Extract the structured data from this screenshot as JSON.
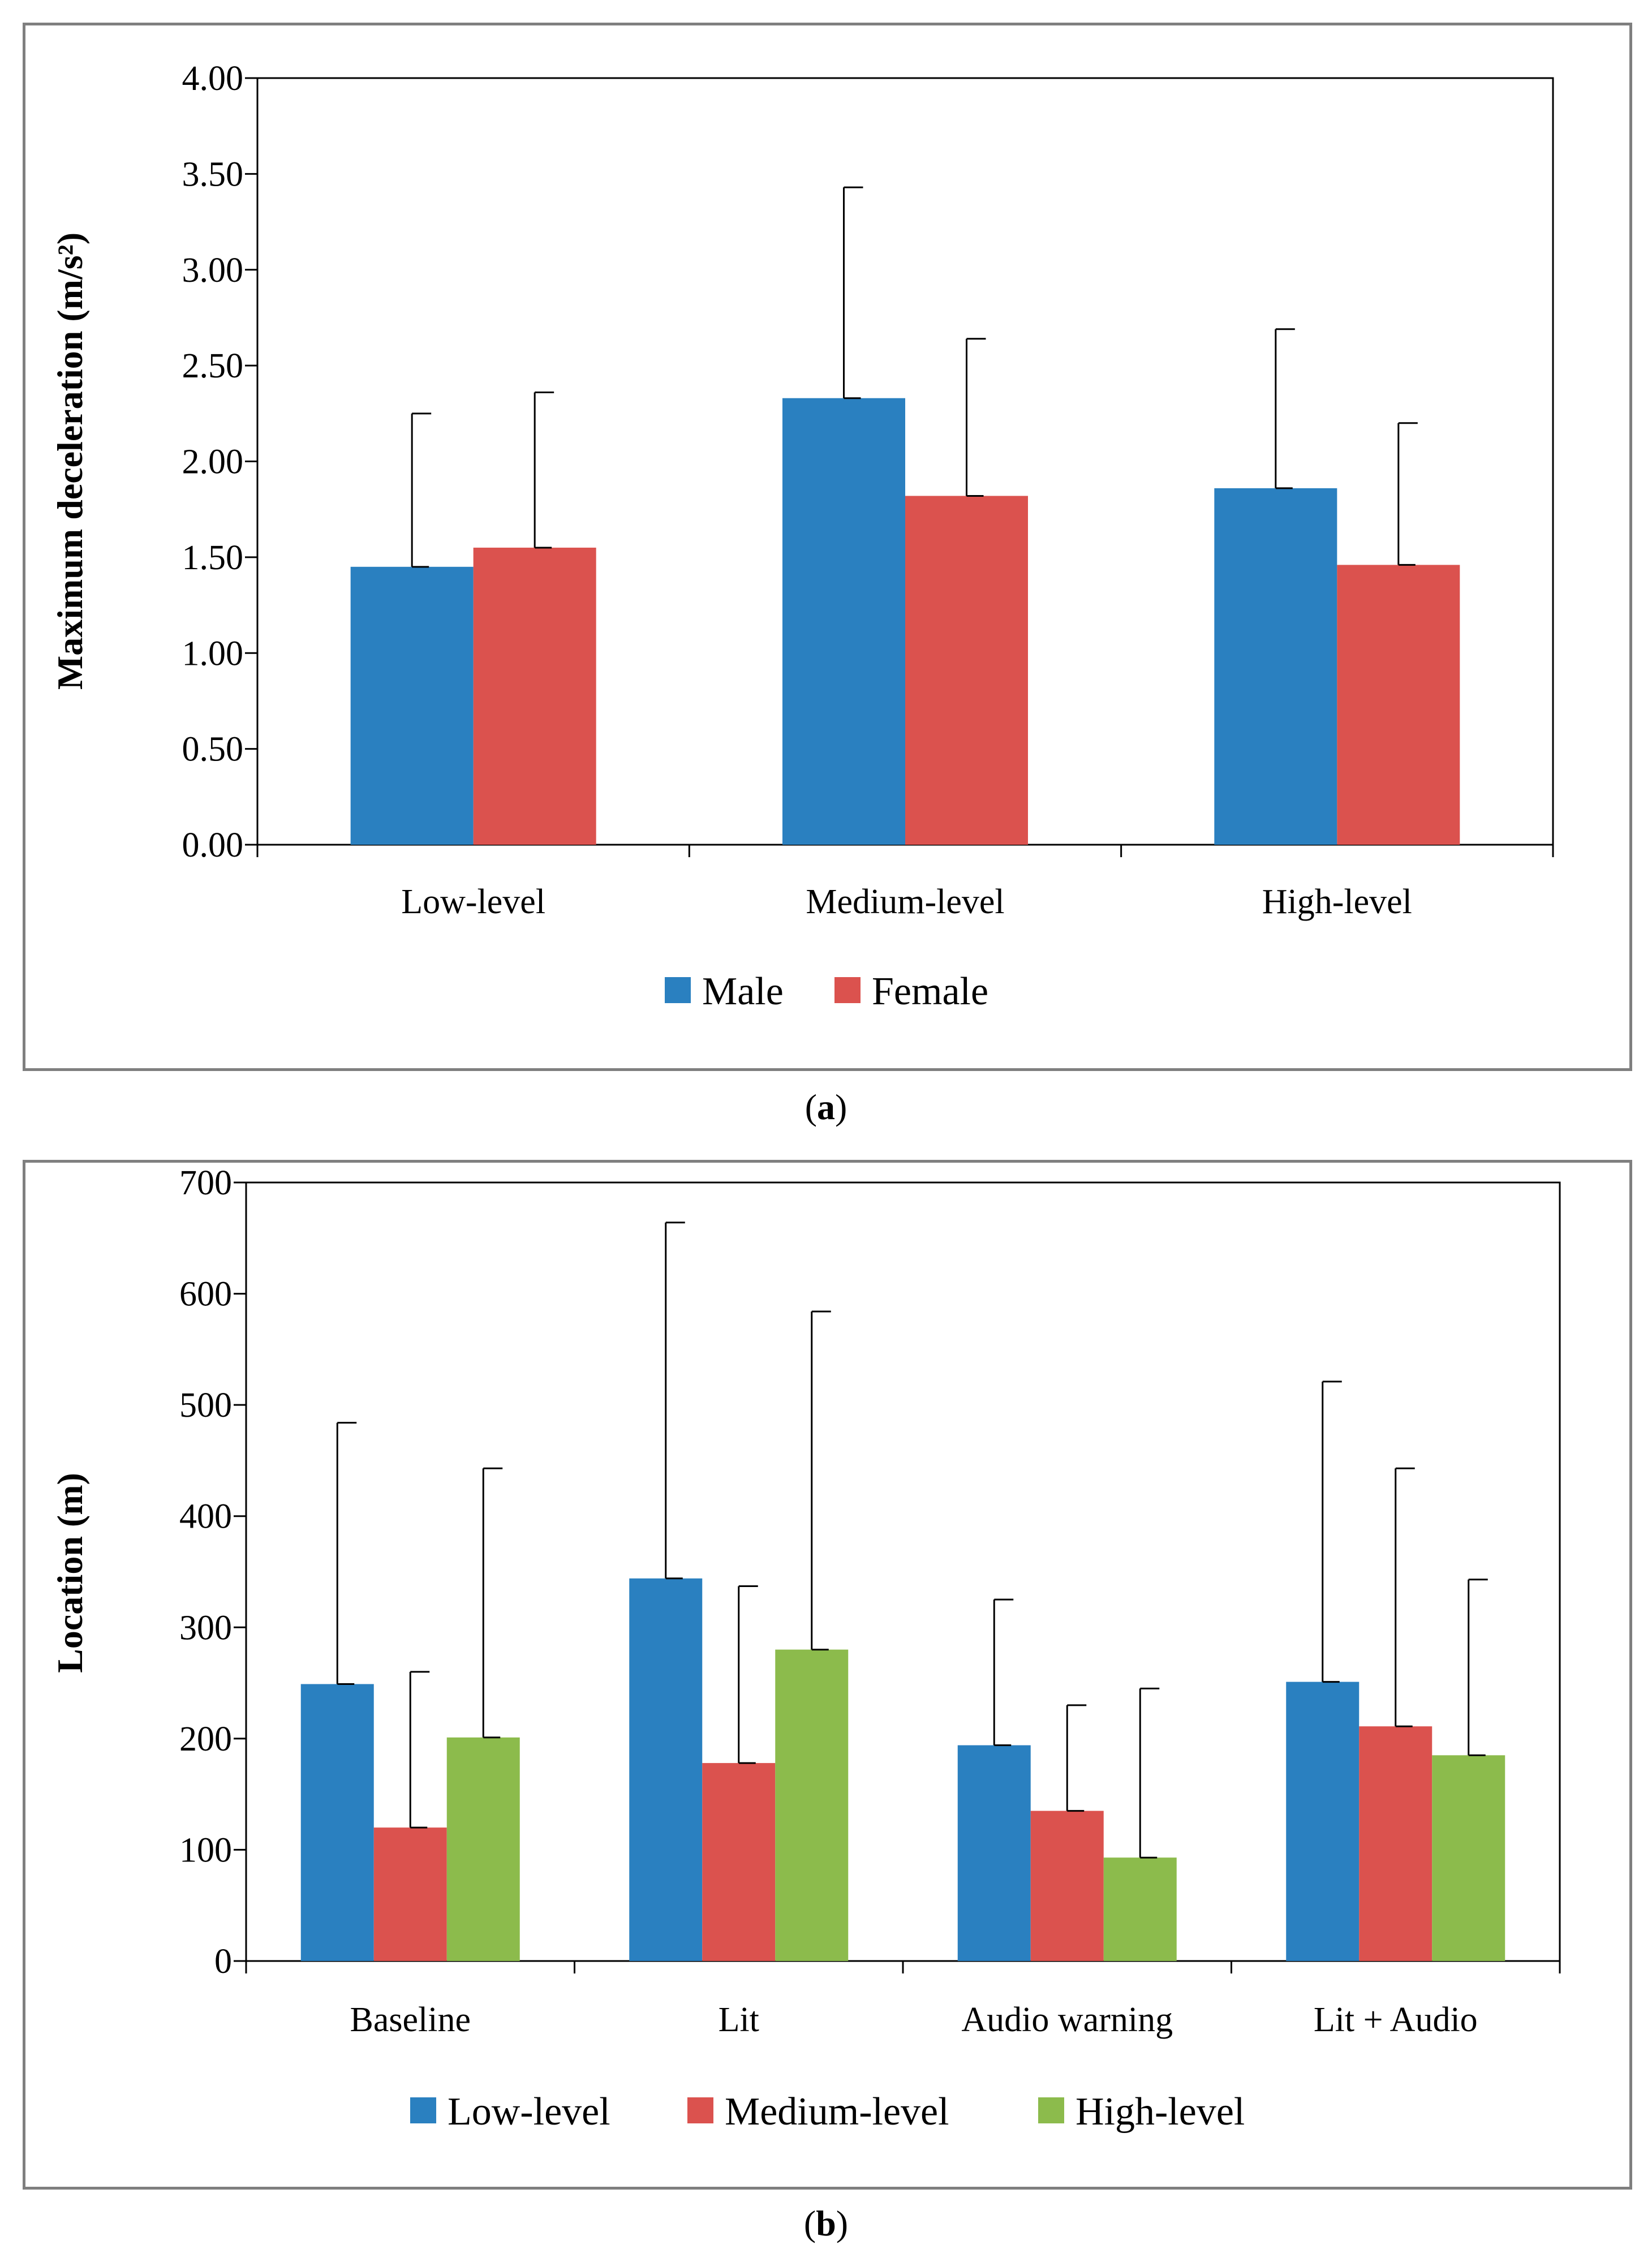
{
  "panels": {
    "a": {
      "caption_open": "(",
      "caption_letter": "a",
      "caption_close": ")"
    },
    "b": {
      "caption_open": "(",
      "caption_letter": "b",
      "caption_close": ")"
    }
  },
  "chart_data": [
    {
      "id": "a",
      "type": "bar",
      "title": "",
      "ylabel": "Maximum deceleration (m/s²)",
      "xlabel": "",
      "ylim": [
        0,
        4
      ],
      "yticks": [
        0,
        0.5,
        1,
        1.5,
        2,
        2.5,
        3,
        3.5,
        4
      ],
      "ytick_labels": [
        "0.00",
        "0.50",
        "1.00",
        "1.50",
        "2.00",
        "2.50",
        "3.00",
        "3.50",
        "4.00"
      ],
      "categories": [
        "Low-level",
        "Medium-level",
        "High-level"
      ],
      "series": [
        {
          "name": "Male",
          "color": "#2a80c0",
          "values": [
            1.45,
            2.33,
            1.86
          ],
          "error_upper": [
            2.25,
            3.43,
            2.69
          ]
        },
        {
          "name": "Female",
          "color": "#db524e",
          "values": [
            1.55,
            1.82,
            1.46
          ],
          "error_upper": [
            2.36,
            2.64,
            2.2
          ]
        }
      ],
      "legend_position": "bottom",
      "grid": false
    },
    {
      "id": "b",
      "type": "bar",
      "title": "",
      "ylabel": "Location (m)",
      "xlabel": "",
      "ylim": [
        0,
        700
      ],
      "yticks": [
        0,
        100,
        200,
        300,
        400,
        500,
        600,
        700
      ],
      "ytick_labels": [
        "0",
        "100",
        "200",
        "300",
        "400",
        "500",
        "600",
        "700"
      ],
      "categories": [
        "Baseline",
        "Lit",
        "Audio warning",
        "Lit + Audio"
      ],
      "series": [
        {
          "name": "Low-level",
          "color": "#2a80c0",
          "values": [
            249,
            344,
            194,
            251
          ],
          "error_upper": [
            484,
            664,
            325,
            521
          ]
        },
        {
          "name": "Medium-level",
          "color": "#db524e",
          "values": [
            120,
            178,
            135,
            211
          ],
          "error_upper": [
            260,
            337,
            230,
            443
          ]
        },
        {
          "name": "High-level",
          "color": "#8cbb4c",
          "values": [
            201,
            280,
            93,
            185
          ],
          "error_upper": [
            443,
            584,
            245,
            343
          ]
        }
      ],
      "legend_position": "bottom",
      "grid": false
    }
  ]
}
